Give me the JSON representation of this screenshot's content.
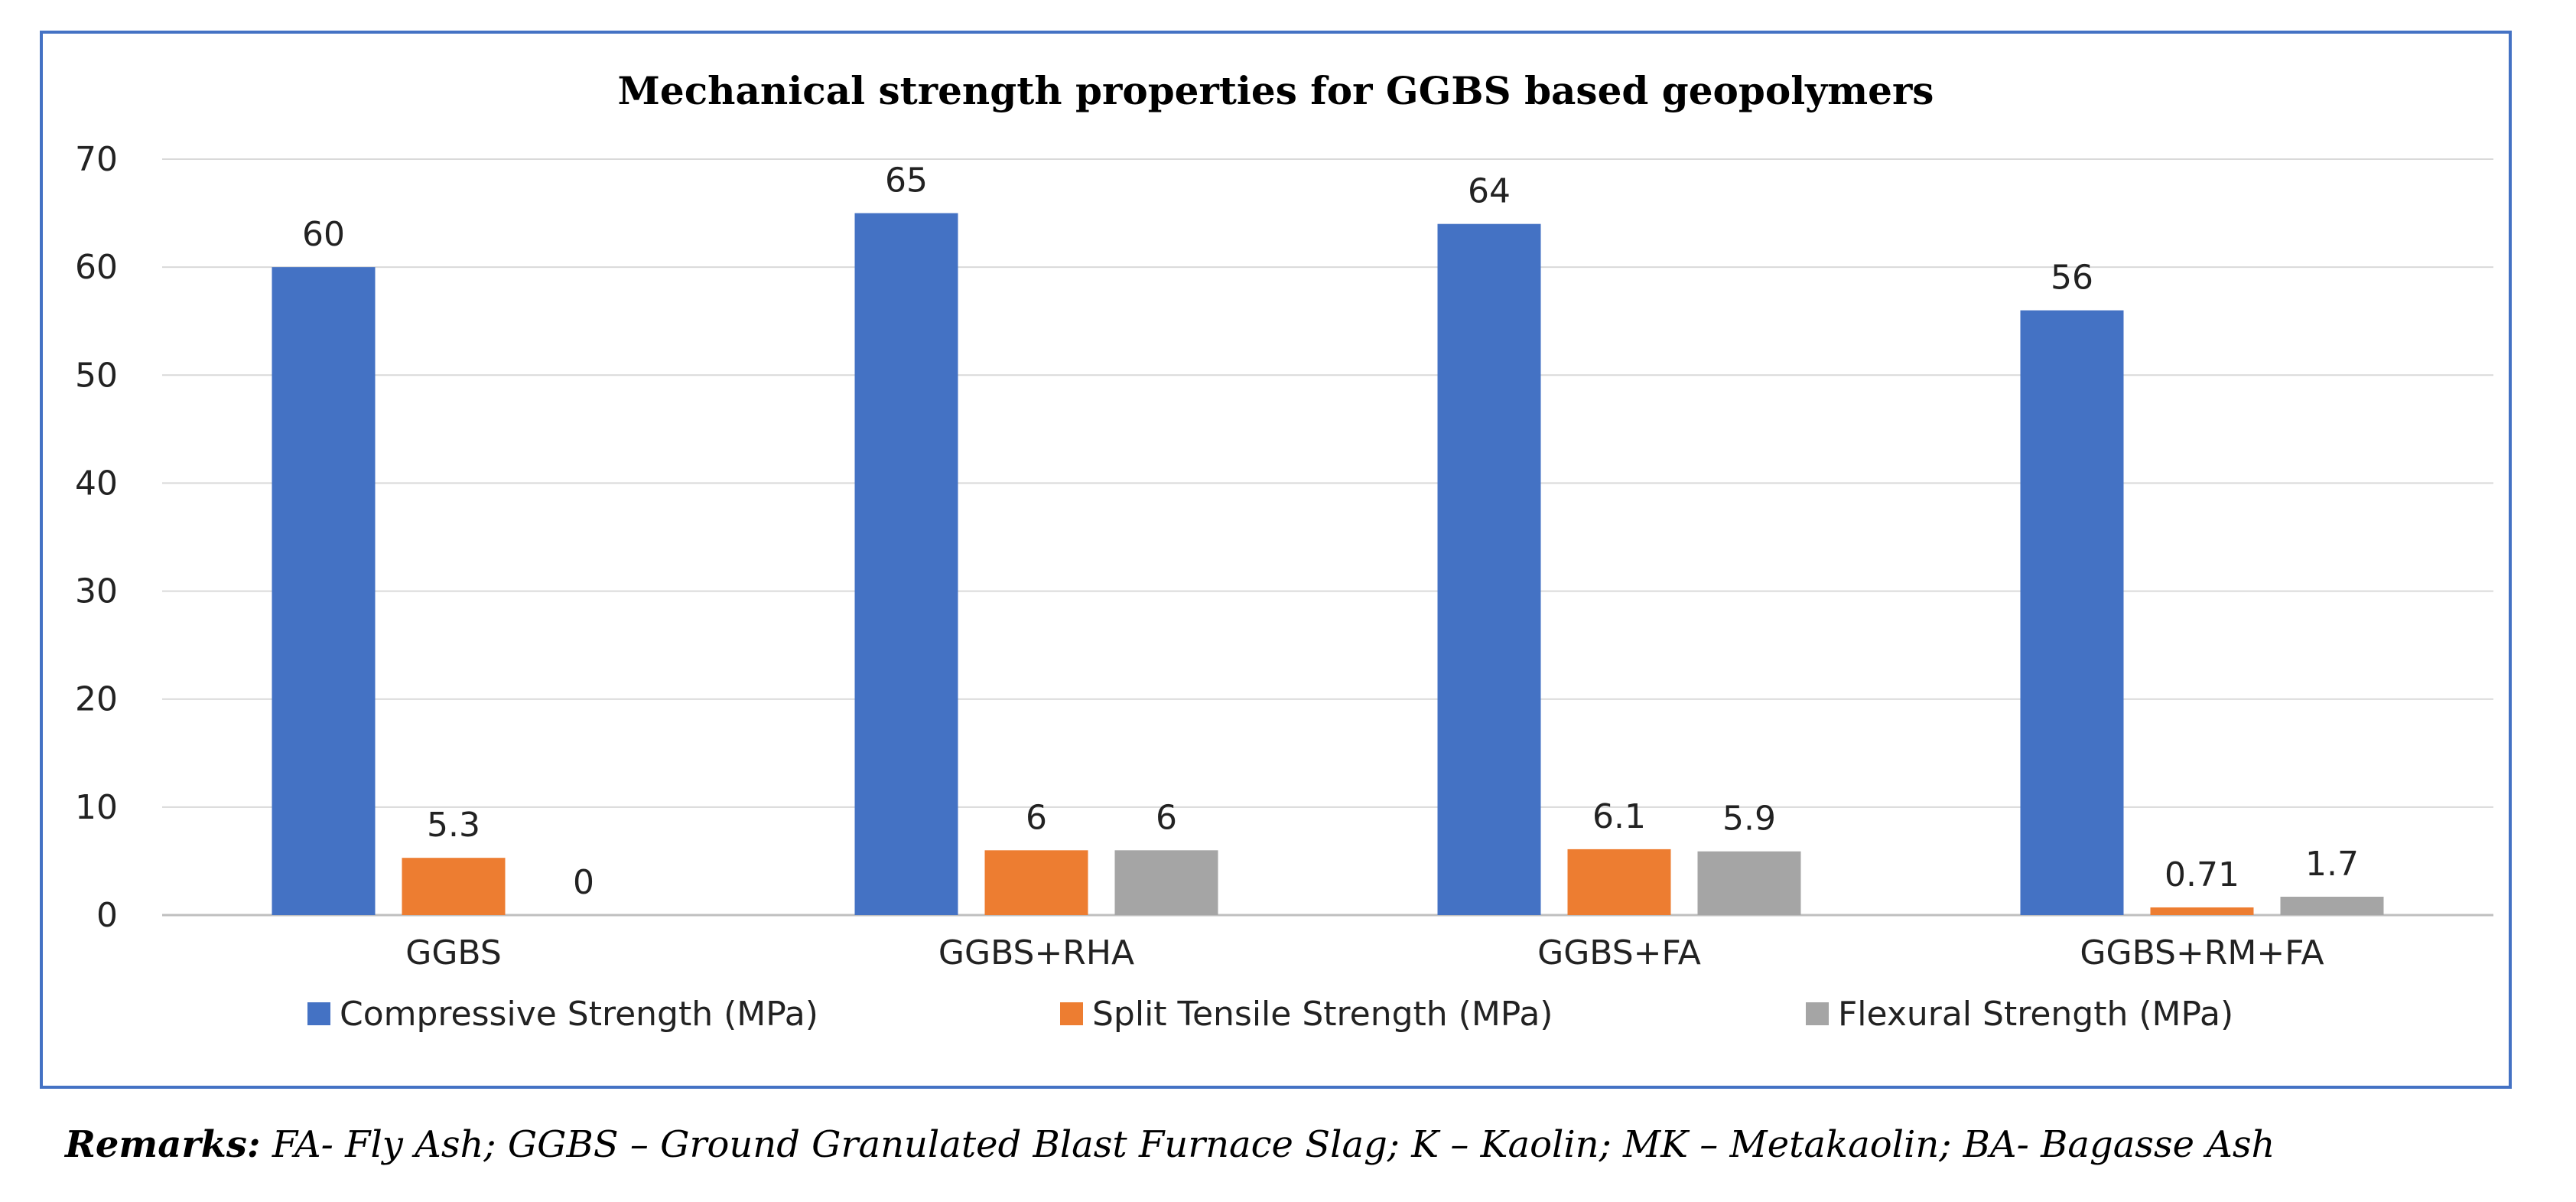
{
  "chart_data": {
    "type": "bar",
    "title": "Mechanical strength properties for GGBS based geopolymers",
    "categories": [
      "GGBS",
      "GGBS+RHA",
      "GGBS+FA",
      "GGBS+RM+FA"
    ],
    "series": [
      {
        "name": "Compressive Strength (MPa)",
        "color": "#4472c4",
        "values": [
          60,
          65,
          64,
          56
        ],
        "labels": [
          "60",
          "65",
          "64",
          "56"
        ]
      },
      {
        "name": "Split Tensile Strength (MPa)",
        "color": "#ed7d31",
        "values": [
          5.3,
          6,
          6.1,
          0.71
        ],
        "labels": [
          "5.3",
          "6",
          "6.1",
          "0.71"
        ]
      },
      {
        "name": "Flexural Strength (MPa)",
        "color": "#a5a5a5",
        "values": [
          0,
          6,
          5.9,
          1.7
        ],
        "labels": [
          "0",
          "6",
          "5.9",
          "1.7"
        ]
      }
    ],
    "yticks": [
      "0",
      "10",
      "20",
      "30",
      "40",
      "50",
      "60",
      "70"
    ],
    "ylim": [
      0,
      70
    ],
    "xlabel": "",
    "ylabel": "",
    "grid": true,
    "legend": "bottom"
  },
  "remarks": {
    "label": "Remarks:",
    "text": " FA- Fly Ash; GGBS – Ground Granulated Blast Furnace Slag; K – Kaolin; MK – Metakaolin; BA- Bagasse Ash"
  }
}
